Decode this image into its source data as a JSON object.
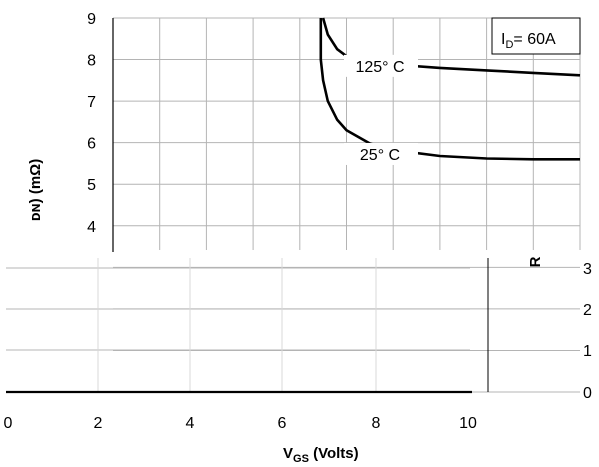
{
  "chart_data": {
    "type": "line",
    "title": "",
    "xlabel": "V",
    "xlabel_sub": "GS",
    "xlabel_rest": " (Volts)",
    "ylabel": "ᴅɴ) (mΩ)",
    "right_label": "R",
    "xlim": [
      0,
      10
    ],
    "ylim": [
      0,
      9
    ],
    "x_ticks": [
      "0",
      "2",
      "4",
      "6",
      "8",
      "10"
    ],
    "y_ticks_left": [
      "9",
      "8",
      "7",
      "6",
      "5",
      "4"
    ],
    "y_ticks_right": [
      "3",
      "2",
      "1",
      "0"
    ],
    "annotation": {
      "prefix": "I",
      "sub": "D",
      "suffix": "= 60A"
    },
    "series": [
      {
        "name": "125° C",
        "color": "#000000",
        "points": [
          [
            4.5,
            9.0
          ],
          [
            4.6,
            8.6
          ],
          [
            4.8,
            8.25
          ],
          [
            5.0,
            8.08
          ],
          [
            5.5,
            7.95
          ],
          [
            6.0,
            7.88
          ],
          [
            7.0,
            7.8
          ],
          [
            8.0,
            7.74
          ],
          [
            9.0,
            7.68
          ],
          [
            10.0,
            7.62
          ]
        ]
      },
      {
        "name": "25° C",
        "color": "#000000",
        "points": [
          [
            4.45,
            9.0
          ],
          [
            4.45,
            8.0
          ],
          [
            4.5,
            7.5
          ],
          [
            4.6,
            7.0
          ],
          [
            4.8,
            6.55
          ],
          [
            5.0,
            6.3
          ],
          [
            5.5,
            5.98
          ],
          [
            6.0,
            5.82
          ],
          [
            7.0,
            5.68
          ],
          [
            8.0,
            5.62
          ],
          [
            9.0,
            5.6
          ],
          [
            10.0,
            5.6
          ]
        ]
      }
    ],
    "grid": true
  }
}
